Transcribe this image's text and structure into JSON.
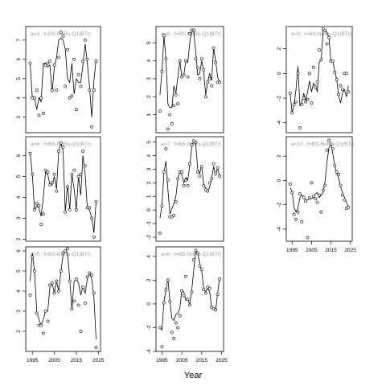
{
  "figure": {
    "xlabel": "Year"
  },
  "chart_data": [
    {
      "type": "line",
      "title": "a=3 : f=BS-NoRu-Q1(BTr)",
      "xlim": [
        1992,
        2026
      ],
      "ylim": [
        2.2,
        7.7
      ],
      "y_ticks": [
        3,
        4,
        5,
        6,
        7
      ],
      "x_ticks": [
        1995,
        2005,
        2015,
        2025
      ],
      "show_x_ticks": false,
      "points_x": [
        1994,
        1995,
        1996,
        1997,
        1998,
        1999,
        2000,
        2001,
        2002,
        2003,
        2004,
        2005,
        2006,
        2007,
        2008,
        2009,
        2010,
        2011,
        2012,
        2013,
        2014,
        2015,
        2016,
        2017,
        2018,
        2019,
        2020,
        2021,
        2022,
        2023,
        2024
      ],
      "points_y": [
        5.8,
        4.0,
        4.0,
        4.4,
        3.1,
        4.0,
        3.2,
        5.7,
        5.8,
        5.9,
        4.4,
        5.7,
        4.4,
        6.1,
        7.4,
        7.2,
        4.6,
        6.5,
        4.0,
        4.1,
        6.0,
        3.4,
        5.2,
        4.6,
        5.9,
        7.0,
        6.0,
        4.4,
        2.5,
        4.4,
        5.9
      ],
      "line_x": [
        1994,
        1995,
        1996,
        1997,
        1998,
        1999,
        2000,
        2001,
        2002,
        2003,
        2004,
        2005,
        2006,
        2007,
        2008,
        2009,
        2010,
        2011,
        2012,
        2013,
        2014,
        2015,
        2016,
        2017,
        2018,
        2019,
        2020,
        2021,
        2022,
        2023,
        2024
      ],
      "line_y": [
        5.8,
        4.0,
        4.0,
        3.4,
        4.0,
        3.8,
        5.8,
        5.8,
        5.6,
        5.7,
        4.3,
        5.6,
        6.1,
        7.0,
        7.1,
        7.0,
        6.5,
        5.0,
        4.8,
        5.8,
        4.2,
        5.0,
        4.8,
        4.8,
        5.7,
        6.8,
        5.8,
        4.6,
        3.0,
        4.9,
        6.0
      ]
    },
    {
      "type": "line",
      "title": "a=6 : f=BS-NoRu-Q1(BTr)",
      "xlim": [
        1992,
        2026
      ],
      "ylim": [
        0.0,
        5.9
      ],
      "y_ticks": [
        1,
        2,
        3,
        4,
        5
      ],
      "x_ticks": [
        1995,
        2005,
        2015,
        2025
      ],
      "show_x_ticks": false,
      "points_x": [
        1994,
        1995,
        1996,
        1997,
        1998,
        1999,
        2000,
        2001,
        2002,
        2003,
        2004,
        2005,
        2006,
        2007,
        2008,
        2009,
        2010,
        2011,
        2012,
        2013,
        2014,
        2015,
        2016,
        2017,
        2018,
        2019,
        2020,
        2021,
        2022,
        2023,
        2024
      ],
      "points_y": [
        1.2,
        3.4,
        5.4,
        4.1,
        0.2,
        1.0,
        0.5,
        1.5,
        2.1,
        1.6,
        4.0,
        3.1,
        3.2,
        4.0,
        3.1,
        5.5,
        5.7,
        5.7,
        4.1,
        3.6,
        3.0,
        4.1,
        3.5,
        2.0,
        2.8,
        3.0,
        2.6,
        4.7,
        3.9,
        2.8,
        2.8
      ],
      "line_x": [
        1994,
        1995,
        1996,
        1997,
        1998,
        1999,
        2000,
        2001,
        2002,
        2003,
        2004,
        2005,
        2006,
        2007,
        2008,
        2009,
        2010,
        2011,
        2012,
        2013,
        2014,
        2015,
        2016,
        2017,
        2018,
        2019,
        2020,
        2021,
        2022,
        2023,
        2024
      ],
      "line_y": [
        2.1,
        3.4,
        5.4,
        4.1,
        1.6,
        1.4,
        1.4,
        2.6,
        2.2,
        3.1,
        4.0,
        3.1,
        3.2,
        4.0,
        3.9,
        5.0,
        5.7,
        5.6,
        4.5,
        3.2,
        3.3,
        4.0,
        3.4,
        2.1,
        2.8,
        3.3,
        2.9,
        4.7,
        4.0,
        3.1,
        2.8
      ]
    },
    {
      "type": "line",
      "title": "a=9 : f=BS-NoRu-Q1(BTr)",
      "xlim": [
        1992,
        2026
      ],
      "ylim": [
        -4.8,
        3.8
      ],
      "y_ticks": [
        -4,
        -2,
        0,
        2
      ],
      "x_ticks": [
        1995,
        2005,
        2015,
        2025
      ],
      "show_x_ticks": false,
      "points_x": [
        1994,
        1995,
        1996,
        1997,
        1998,
        1999,
        2000,
        2001,
        2002,
        2003,
        2004,
        2005,
        2006,
        2007,
        2008,
        2009,
        2010,
        2011,
        2012,
        2013,
        2014,
        2015,
        2016,
        2017,
        2018,
        2019,
        2020,
        2021,
        2022,
        2023,
        2024
      ],
      "points_y": [
        -1.6,
        -3.2,
        -2.5,
        -2.3,
        0.0,
        -4.4,
        -2.5,
        -2.0,
        -2.3,
        -2.1,
        0.0,
        -2.4,
        0.5,
        -1.1,
        -0.7,
        1.9,
        1.1,
        3.6,
        3.5,
        2.4,
        2.9,
        1.0,
        1.0,
        0.1,
        -0.5,
        -1.7,
        -1.0,
        -1.3,
        0.0,
        0.0,
        -1.5
      ],
      "line_x": [
        1994,
        1995,
        1996,
        1997,
        1998,
        1999,
        2000,
        2001,
        2002,
        2003,
        2004,
        2005,
        2006,
        2007,
        2008,
        2009,
        2010,
        2011,
        2012,
        2013,
        2014,
        2015,
        2016,
        2017,
        2018,
        2019,
        2020,
        2021,
        2022,
        2023,
        2024
      ],
      "line_y": [
        -1.6,
        -3.2,
        -2.6,
        -1.3,
        0.6,
        -2.6,
        -2.3,
        -1.6,
        -2.2,
        -1.5,
        -0.6,
        -1.5,
        -0.8,
        -1.0,
        -1.5,
        0.9,
        1.1,
        3.5,
        3.5,
        3.3,
        2.9,
        1.0,
        1.0,
        0.2,
        -0.5,
        -1.8,
        -2.4,
        -1.6,
        -1.3,
        -1.9,
        -1.0
      ]
    },
    {
      "type": "line",
      "title": "a=4 : f=BS-NoRu-Q1(BTr)",
      "xlim": [
        1992,
        2026
      ],
      "ylim": [
        1.9,
        6.9
      ],
      "y_ticks": [
        2,
        3,
        4,
        5,
        6
      ],
      "x_ticks": [
        1995,
        2005,
        2015,
        2025
      ],
      "show_x_ticks": false,
      "points_x": [
        1994,
        1995,
        1996,
        1997,
        1998,
        1999,
        2000,
        2001,
        2002,
        2003,
        2004,
        2005,
        2006,
        2007,
        2008,
        2009,
        2010,
        2011,
        2012,
        2013,
        2014,
        2015,
        2016,
        2017,
        2018,
        2019,
        2020,
        2021,
        2022,
        2023,
        2024
      ],
      "points_y": [
        6.1,
        5.1,
        3.4,
        3.7,
        3.6,
        2.7,
        3.2,
        5.3,
        5.2,
        4.6,
        4.7,
        5.1,
        4.3,
        6.2,
        6.6,
        6.4,
        3.3,
        4.5,
        3.4,
        5.1,
        5.3,
        3.4,
        5.0,
        5.1,
        6.2,
        5.5,
        3.5,
        3.5,
        3.0,
        2.1,
        3.8
      ],
      "line_x": [
        1994,
        1995,
        1996,
        1997,
        1998,
        1999,
        2000,
        2001,
        2002,
        2003,
        2004,
        2005,
        2006,
        2007,
        2008,
        2009,
        2010,
        2011,
        2012,
        2013,
        2014,
        2015,
        2016,
        2017,
        2018,
        2019,
        2020,
        2021,
        2022,
        2023,
        2024
      ],
      "line_y": [
        6.1,
        5.1,
        3.4,
        3.6,
        3.5,
        3.1,
        4.0,
        5.2,
        5.1,
        4.6,
        4.6,
        5.0,
        4.4,
        6.2,
        6.6,
        6.2,
        3.3,
        4.6,
        3.4,
        5.1,
        4.4,
        3.4,
        5.0,
        4.1,
        6.0,
        5.1,
        3.5,
        3.4,
        3.0,
        2.3,
        3.8
      ]
    },
    {
      "type": "line",
      "title": "a=7 : f=BS-NoRu-Q1(BTr)",
      "xlim": [
        1992,
        2026
      ],
      "ylim": [
        -2.3,
        5.4
      ],
      "y_ticks": [
        -2,
        -1,
        0,
        1,
        2,
        3,
        4,
        5
      ],
      "x_ticks": [
        1995,
        2005,
        2015,
        2025
      ],
      "show_x_ticks": false,
      "points_x": [
        1994,
        1995,
        1996,
        1997,
        1998,
        1999,
        2000,
        2001,
        2002,
        2003,
        2004,
        2005,
        2006,
        2007,
        2008,
        2009,
        2010,
        2011,
        2012,
        2013,
        2014,
        2015,
        2016,
        2017,
        2018,
        2019,
        2020,
        2021,
        2022,
        2023,
        2024
      ],
      "points_y": [
        -1.7,
        0.3,
        2.8,
        4.5,
        2.2,
        -0.5,
        -0.5,
        -0.4,
        0.6,
        2.3,
        2.8,
        2.8,
        1.8,
        2.2,
        1.8,
        3.4,
        4.8,
        5.1,
        5.0,
        2.8,
        2.5,
        3.2,
        1.8,
        1.5,
        1.4,
        2.0,
        2.3,
        3.4,
        2.7,
        3.1,
        2.5
      ],
      "line_x": [
        1994,
        1995,
        1996,
        1997,
        1998,
        1999,
        2000,
        2001,
        2002,
        2003,
        2004,
        2005,
        2006,
        2007,
        2008,
        2009,
        2010,
        2011,
        2012,
        2013,
        2014,
        2015,
        2016,
        2017,
        2018,
        2019,
        2020,
        2021,
        2022,
        2023,
        2024
      ],
      "line_y": [
        -0.6,
        0.3,
        2.8,
        3.6,
        1.5,
        -0.3,
        0.1,
        0.5,
        1.0,
        2.3,
        2.8,
        2.6,
        2.0,
        2.4,
        2.2,
        3.3,
        4.6,
        5.1,
        4.8,
        3.0,
        2.7,
        3.3,
        1.9,
        1.6,
        1.3,
        1.7,
        2.3,
        3.2,
        2.6,
        3.1,
        2.5
      ]
    },
    {
      "type": "line",
      "title": "a=10 : f=BS-NoRu-Q1(BTr)",
      "xlim": [
        1992,
        2026
      ],
      "ylim": [
        -5.0,
        3.6
      ],
      "y_ticks": [
        -4,
        -2,
        0,
        2
      ],
      "x_ticks": [
        1995,
        2005,
        2015,
        2025
      ],
      "show_x_ticks": true,
      "points_x": [
        1994,
        1995,
        1996,
        1997,
        1998,
        1999,
        2000,
        2001,
        2002,
        2003,
        2004,
        2005,
        2006,
        2007,
        2008,
        2009,
        2010,
        2011,
        2012,
        2013,
        2014,
        2015,
        2016,
        2017,
        2018,
        2019,
        2020,
        2021,
        2022,
        2023,
        2024
      ],
      "points_y": [
        -0.3,
        -1.0,
        -2.8,
        -3.2,
        -2.6,
        -1.1,
        -3.4,
        -1.4,
        -1.7,
        -4.7,
        -1.4,
        -0.2,
        -1.3,
        -1.5,
        -1.8,
        -1.2,
        -2.6,
        -0.8,
        -0.4,
        2.5,
        3.3,
        3.0,
        2.6,
        1.2,
        0.7,
        0.5,
        -0.4,
        -1.2,
        -1.6,
        -2.3,
        -2.2
      ],
      "line_x": [
        1994,
        1995,
        1996,
        1997,
        1998,
        1999,
        2000,
        2001,
        2002,
        2003,
        2004,
        2005,
        2006,
        2007,
        2008,
        2009,
        2010,
        2011,
        2012,
        2013,
        2014,
        2015,
        2016,
        2017,
        2018,
        2019,
        2020,
        2021,
        2022,
        2023,
        2024
      ],
      "line_y": [
        -0.6,
        -0.9,
        -2.2,
        -2.6,
        -2.3,
        -1.4,
        -1.2,
        -1.3,
        -1.6,
        -1.6,
        -1.5,
        -1.5,
        -1.4,
        -1.1,
        -1.0,
        -1.4,
        -1.2,
        -1.0,
        -0.1,
        1.5,
        2.7,
        3.0,
        2.2,
        1.2,
        0.6,
        0.2,
        -0.5,
        -1.0,
        -1.4,
        -1.8,
        -2.2
      ]
    },
    {
      "type": "line",
      "title": "a=5 : f=BS-NoRu-Q1(BTr)",
      "xlim": [
        1992,
        2026
      ],
      "ylim": [
        1.0,
        6.2
      ],
      "y_ticks": [
        2,
        3,
        4,
        5,
        6
      ],
      "x_ticks": [
        1995,
        2005,
        2015,
        2025
      ],
      "show_x_ticks": true,
      "points_x": [
        1994,
        1995,
        1996,
        1997,
        1998,
        1999,
        2000,
        2001,
        2002,
        2003,
        2004,
        2005,
        2006,
        2007,
        2008,
        2009,
        2010,
        2011,
        2012,
        2013,
        2014,
        2015,
        2016,
        2017,
        2018,
        2019,
        2020,
        2021,
        2022,
        2023,
        2024
      ],
      "points_y": [
        3.8,
        5.7,
        5.0,
        2.9,
        2.3,
        2.3,
        1.9,
        3.0,
        2.5,
        4.3,
        4.4,
        3.9,
        4.5,
        4.0,
        5.0,
        5.9,
        6.0,
        6.1,
        4.5,
        3.1,
        3.5,
        4.6,
        3.3,
        2.0,
        4.2,
        3.4,
        4.7,
        4.9,
        4.8,
        3.9,
        1.2
      ],
      "line_x": [
        1994,
        1995,
        1996,
        1997,
        1998,
        1999,
        2000,
        2001,
        2002,
        2003,
        2004,
        2005,
        2006,
        2007,
        2008,
        2009,
        2010,
        2011,
        2012,
        2013,
        2014,
        2015,
        2016,
        2017,
        2018,
        2019,
        2020,
        2021,
        2022,
        2023,
        2024
      ],
      "line_y": [
        4.5,
        5.9,
        5.0,
        3.0,
        2.6,
        2.3,
        2.6,
        3.0,
        3.0,
        4.2,
        4.4,
        3.9,
        4.5,
        4.0,
        5.0,
        5.8,
        6.0,
        5.9,
        4.6,
        3.1,
        4.5,
        4.6,
        4.4,
        3.8,
        4.2,
        3.9,
        4.6,
        4.9,
        4.6,
        3.7,
        1.6
      ]
    },
    {
      "type": "line",
      "title": "a=8 : f=BS-NoRu-Q1(BTr)",
      "xlim": [
        1992,
        2026
      ],
      "ylim": [
        -4.0,
        4.8
      ],
      "y_ticks": [
        -4,
        -2,
        0,
        2,
        4
      ],
      "x_ticks": [
        1995,
        2005,
        2015,
        2025
      ],
      "show_x_ticks": true,
      "points_x": [
        1994,
        1995,
        1996,
        1997,
        1998,
        1999,
        2000,
        2001,
        2002,
        2003,
        2004,
        2005,
        2006,
        2007,
        2008,
        2009,
        2010,
        2011,
        2012,
        2013,
        2014,
        2015,
        2016,
        2017,
        2018,
        2019,
        2020,
        2021,
        2022,
        2023,
        2024
      ],
      "points_y": [
        -2.0,
        -3.6,
        0.1,
        1.2,
        2.0,
        0.2,
        -2.4,
        -2.9,
        -1.6,
        -2.0,
        -1.0,
        1.1,
        0.7,
        2.3,
        0.4,
        -0.1,
        1.0,
        3.7,
        4.5,
        4.3,
        3.2,
        2.9,
        1.2,
        0.9,
        1.4,
        1.3,
        -0.3,
        -0.4,
        -0.5,
        0.8,
        2.1
      ],
      "line_x": [
        1994,
        1995,
        1996,
        1997,
        1998,
        1999,
        2000,
        2001,
        2002,
        2003,
        2004,
        2005,
        2006,
        2007,
        2008,
        2009,
        2010,
        2011,
        2012,
        2013,
        2014,
        2015,
        2016,
        2017,
        2018,
        2019,
        2020,
        2021,
        2022,
        2023,
        2024
      ],
      "line_y": [
        -2.0,
        -2.2,
        0.2,
        1.2,
        2.1,
        0.2,
        -1.2,
        -1.4,
        -0.9,
        -0.8,
        -0.4,
        1.2,
        1.0,
        0.3,
        0.4,
        -0.1,
        1.2,
        2.8,
        4.5,
        4.3,
        3.4,
        2.8,
        1.3,
        1.0,
        1.3,
        1.0,
        -0.3,
        -0.4,
        -0.6,
        0.9,
        2.1
      ]
    }
  ]
}
